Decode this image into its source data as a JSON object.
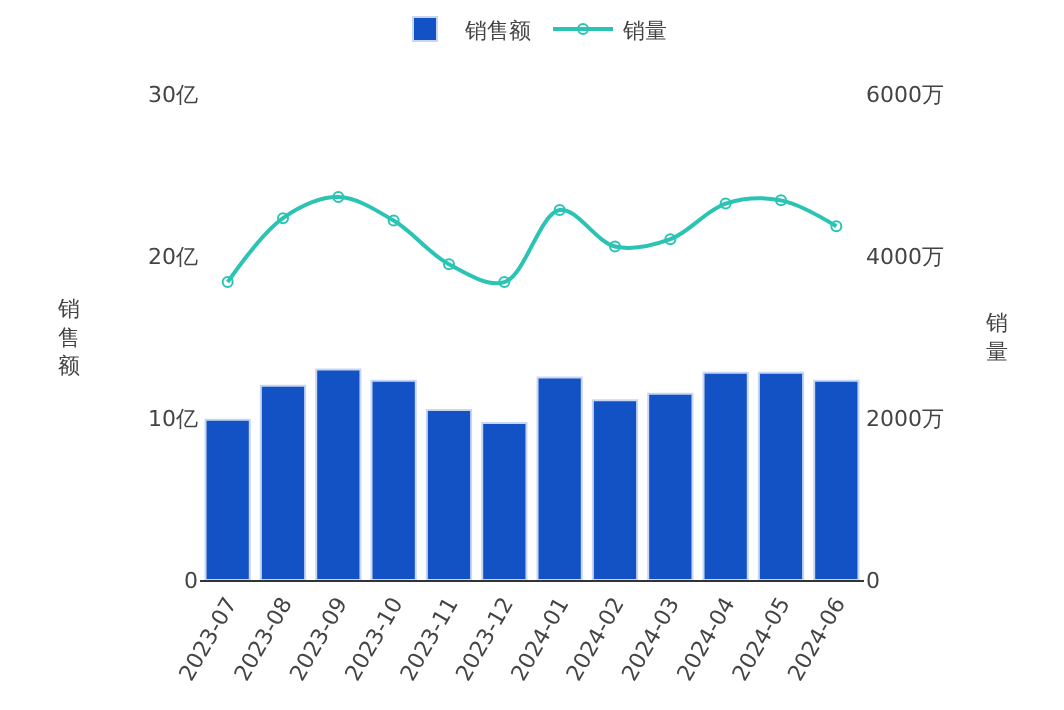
{
  "chart_data": {
    "type": "bar",
    "categories": [
      "2023-07",
      "2023-08",
      "2023-09",
      "2023-10",
      "2023-11",
      "2023-12",
      "2024-01",
      "2024-02",
      "2024-03",
      "2024-04",
      "2024-05",
      "2024-06"
    ],
    "ylabel": "销售额",
    "y2label": "销量",
    "series": [
      {
        "name": "销售额",
        "color": "#1352c4",
        "values": [
          9.9,
          12.0,
          13.0,
          12.3,
          10.5,
          9.7,
          12.5,
          11.1,
          11.5,
          12.8,
          12.8,
          12.3
        ]
      },
      {
        "name": "销量",
        "type": "line",
        "axis": "y2",
        "color": "#2bc4b4",
        "marker": "circle",
        "values": [
          3680,
          4470,
          4730,
          4440,
          3900,
          3680,
          4570,
          4120,
          4210,
          4650,
          4690,
          4370
        ]
      }
    ],
    "ylim": [
      0,
      30
    ],
    "yticks": [
      0,
      {
        "value": 10,
        "label": "10亿"
      },
      {
        "value": 20,
        "label": "20亿"
      },
      {
        "value": 30,
        "label": "30亿"
      }
    ],
    "y2lim": [
      0,
      6000
    ],
    "y2ticks": [
      0,
      {
        "value": 2000,
        "label": "2000万"
      },
      {
        "value": 4000,
        "label": "4000万"
      },
      {
        "value": 6000,
        "label": "6000万"
      }
    ],
    "legend": "top"
  }
}
